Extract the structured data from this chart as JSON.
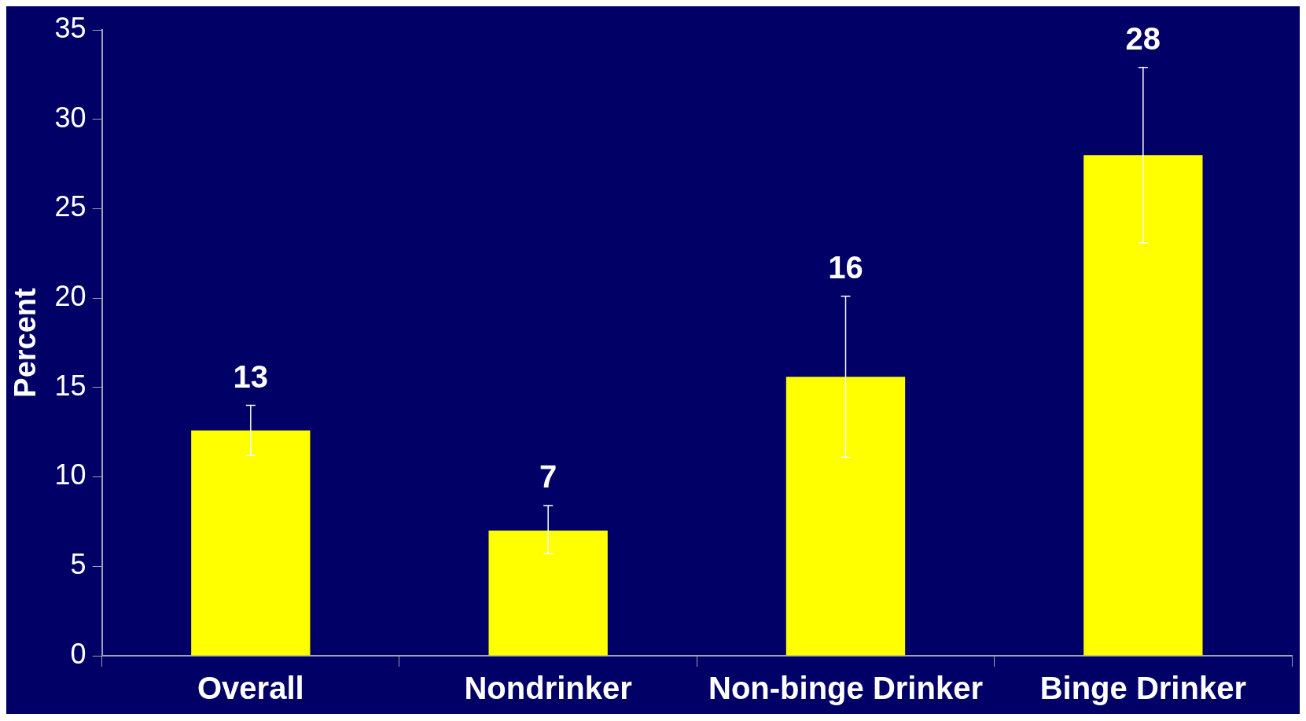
{
  "chart_data": {
    "type": "bar",
    "ylabel": "Percent",
    "categories": [
      "Overall",
      "Nondrinker",
      "Non-binge Drinker",
      "Binge Drinker"
    ],
    "values": [
      12.6,
      7.0,
      15.6,
      28.0
    ],
    "value_labels": [
      "13",
      "7",
      "16",
      "28"
    ],
    "errors": [
      [
        11.2,
        14.0
      ],
      [
        5.7,
        8.4
      ],
      [
        11.1,
        20.1
      ],
      [
        23.1,
        32.9
      ]
    ],
    "color": "#ffff00",
    "ylim": [
      0,
      35
    ],
    "yticks": [
      0,
      5,
      10,
      15,
      20,
      25,
      30,
      35
    ],
    "grid": false,
    "legend": false
  }
}
